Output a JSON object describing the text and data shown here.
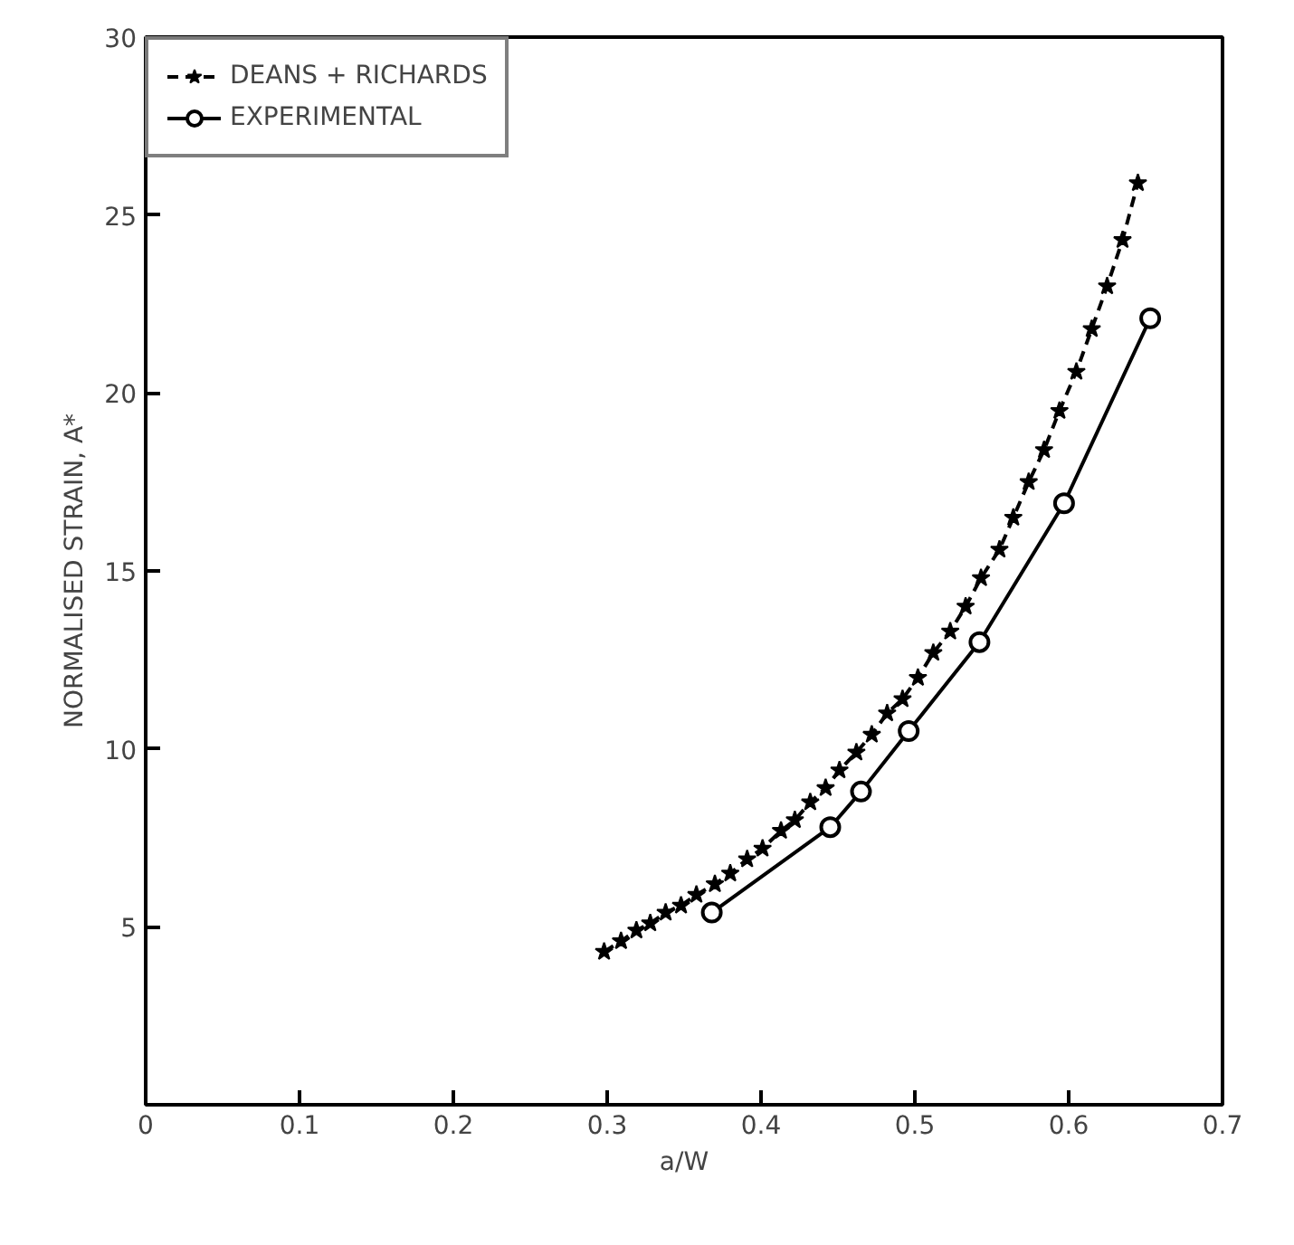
{
  "chart_data": {
    "type": "line",
    "xlabel": "a/W",
    "ylabel": "NORMALISED STRAIN, A*",
    "xlim": [
      0,
      0.7
    ],
    "ylim": [
      0,
      30
    ],
    "xticks": [
      0,
      0.1,
      0.2,
      0.3,
      0.4,
      0.5,
      0.6,
      0.7
    ],
    "yticks": [
      5,
      10,
      15,
      20,
      25,
      30
    ],
    "grid": false,
    "legend": "top left",
    "series": [
      {
        "name": "DEANS + RICHARDS",
        "color": "#000000",
        "marker": "star",
        "line_style": "dashed",
        "x": [
          0.298,
          0.309,
          0.319,
          0.328,
          0.338,
          0.348,
          0.358,
          0.37,
          0.38,
          0.391,
          0.401,
          0.413,
          0.422,
          0.432,
          0.442,
          0.451,
          0.462,
          0.472,
          0.482,
          0.492,
          0.502,
          0.512,
          0.523,
          0.533,
          0.543,
          0.555,
          0.564,
          0.574,
          0.584,
          0.594,
          0.605,
          0.615,
          0.625,
          0.635,
          0.645
        ],
        "values": [
          4.3,
          4.6,
          4.9,
          5.1,
          5.4,
          5.6,
          5.9,
          6.2,
          6.5,
          6.9,
          7.2,
          7.7,
          8.0,
          8.5,
          8.9,
          9.4,
          9.9,
          10.4,
          11.0,
          11.4,
          12.0,
          12.7,
          13.3,
          14.0,
          14.8,
          15.6,
          16.5,
          17.5,
          18.4,
          19.5,
          20.6,
          21.8,
          23.0,
          24.3,
          25.9
        ]
      },
      {
        "name": "EXPERIMENTAL",
        "color": "#000000",
        "marker": "circle",
        "line_style": "solid",
        "x": [
          0.368,
          0.445,
          0.465,
          0.496,
          0.542,
          0.597,
          0.653
        ],
        "values": [
          5.4,
          7.8,
          8.8,
          10.5,
          13.0,
          16.9,
          22.1
        ]
      }
    ]
  }
}
